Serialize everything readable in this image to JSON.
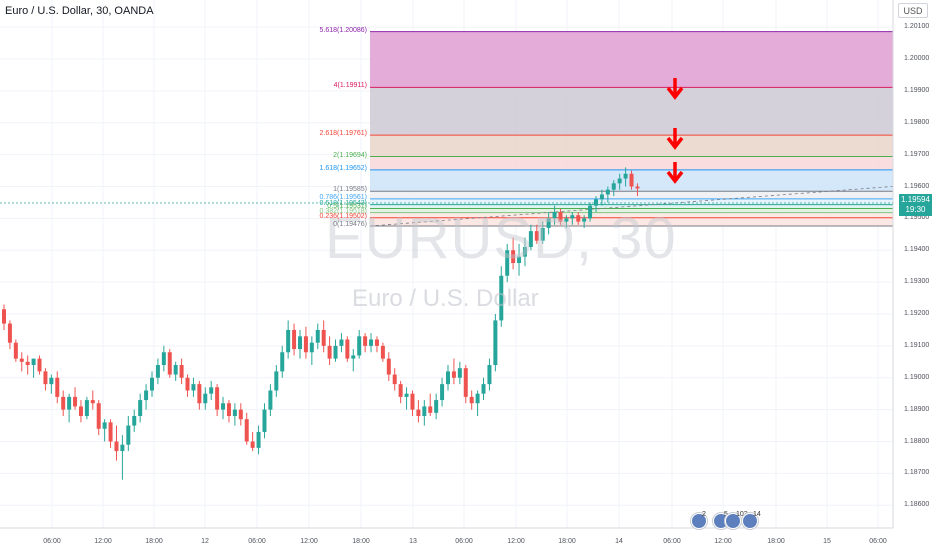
{
  "chart_title": "Euro / U.S. Dollar, 30, OANDA",
  "currency_button": "USD",
  "watermark": {
    "symbol": "EURUSD, 30",
    "name": "Euro / U.S. Dollar"
  },
  "last_price": {
    "price": "1.19594",
    "countdown": "19:30"
  },
  "colors": {
    "up": "#26a69a",
    "down": "#ef5350",
    "arrow": "#ff0000",
    "grid": "#f0f3fa"
  },
  "fib_levels": [
    {
      "ratio": 5.618,
      "label": "5.618(1.20086)",
      "color": "#8e24aa",
      "fill": "#e1a3d4"
    },
    {
      "ratio": 4,
      "label": "4(1.19911)",
      "color": "#d81b60",
      "fill": "#d0ccd6"
    },
    {
      "ratio": 2.618,
      "label": "2.618(1.19761)",
      "color": "#f44336",
      "fill": "#ead7cc"
    },
    {
      "ratio": 2,
      "label": "2(1.19694)",
      "color": "#4caf50",
      "fill": "#f9d9dc"
    },
    {
      "ratio": 1.618,
      "label": "1.618(1.19652)",
      "color": "#2196f3",
      "fill": "#cfe5fa"
    },
    {
      "ratio": 1,
      "label": "1(1.19585)",
      "color": "#787b86",
      "fill": "#eef0f3"
    },
    {
      "ratio": 0.786,
      "label": "0.786(1.19561)",
      "color": "#42a5f5",
      "fill": "#e3f2fb"
    },
    {
      "ratio": 0.618,
      "label": "0.618(1.19543)",
      "color": "#26a69a",
      "fill": "#dcf2ee"
    },
    {
      "ratio": 0.5,
      "label": "0.5(1.19531)",
      "color": "#4caf50",
      "fill": "#e0f1df"
    },
    {
      "ratio": 0.382,
      "label": "0.382(1.19518)",
      "color": "#81c784",
      "fill": "#fbe9e3"
    },
    {
      "ratio": 0.236,
      "label": "0.236(1.19502)",
      "color": "#f44336",
      "fill": "#fbe4e0"
    },
    {
      "ratio": 0,
      "label": "0(1.19476)",
      "color": "#787b86"
    }
  ],
  "y_axis": [
    "1.20100",
    "1.20000",
    "1.19900",
    "1.19800",
    "1.19700",
    "1.19600",
    "1.19500",
    "1.19400",
    "1.19300",
    "1.19200",
    "1.19100",
    "1.19000",
    "1.18900",
    "1.18800",
    "1.18700",
    "1.18600"
  ],
  "x_axis": [
    "06:00",
    "12:00",
    "18:00",
    "12",
    "06:00",
    "12:00",
    "18:00",
    "13",
    "06:00",
    "12:00",
    "18:00",
    "14",
    "06:00",
    "12:00",
    "18:00",
    "15",
    "06:00"
  ],
  "events": [
    {
      "count": "2"
    },
    {
      "count": "5"
    },
    {
      "count": "103"
    },
    {
      "count": "14"
    }
  ],
  "chart_data": {
    "type": "candlestick",
    "title": "Euro / U.S. Dollar, 30, OANDA",
    "ylim": [
      1.1856,
      1.2016
    ],
    "candles_ohlc": [
      [
        1.19215,
        1.1923,
        1.1915,
        1.1917
      ],
      [
        1.1917,
        1.1918,
        1.1909,
        1.1911
      ],
      [
        1.1911,
        1.1912,
        1.1905,
        1.1906
      ],
      [
        1.1906,
        1.1908,
        1.1902,
        1.1905
      ],
      [
        1.1905,
        1.1907,
        1.1901,
        1.1904
      ],
      [
        1.1904,
        1.1906,
        1.19,
        1.1906
      ],
      [
        1.1906,
        1.1907,
        1.1901,
        1.1902
      ],
      [
        1.1902,
        1.1903,
        1.1896,
        1.1898
      ],
      [
        1.1898,
        1.1901,
        1.1895,
        1.19
      ],
      [
        1.19,
        1.1902,
        1.1892,
        1.1894
      ],
      [
        1.1894,
        1.1896,
        1.1888,
        1.189
      ],
      [
        1.189,
        1.1895,
        1.1886,
        1.1894
      ],
      [
        1.1894,
        1.1897,
        1.189,
        1.1891
      ],
      [
        1.1891,
        1.1893,
        1.1886,
        1.1888
      ],
      [
        1.1888,
        1.1894,
        1.1887,
        1.1893
      ],
      [
        1.1893,
        1.1896,
        1.189,
        1.1892
      ],
      [
        1.1892,
        1.1893,
        1.1882,
        1.1884
      ],
      [
        1.1884,
        1.1887,
        1.188,
        1.1886
      ],
      [
        1.1886,
        1.1887,
        1.1878,
        1.188
      ],
      [
        1.188,
        1.1885,
        1.1874,
        1.1877
      ],
      [
        1.1877,
        1.1882,
        1.1868,
        1.1879
      ],
      [
        1.1879,
        1.1888,
        1.1877,
        1.1885
      ],
      [
        1.1885,
        1.189,
        1.1883,
        1.1888
      ],
      [
        1.1888,
        1.1895,
        1.1886,
        1.1893
      ],
      [
        1.1893,
        1.1898,
        1.189,
        1.1896
      ],
      [
        1.1896,
        1.1902,
        1.1894,
        1.19
      ],
      [
        1.19,
        1.1906,
        1.1898,
        1.1904
      ],
      [
        1.1904,
        1.191,
        1.1902,
        1.1908
      ],
      [
        1.1908,
        1.1909,
        1.19,
        1.1901
      ],
      [
        1.1901,
        1.1905,
        1.1899,
        1.1904
      ],
      [
        1.1904,
        1.1906,
        1.1898,
        1.19
      ],
      [
        1.19,
        1.1901,
        1.1894,
        1.1896
      ],
      [
        1.1896,
        1.19,
        1.1894,
        1.1898
      ],
      [
        1.1898,
        1.1899,
        1.189,
        1.1892
      ],
      [
        1.1892,
        1.1897,
        1.189,
        1.1895
      ],
      [
        1.1895,
        1.1899,
        1.1893,
        1.1897
      ],
      [
        1.1897,
        1.1898,
        1.1888,
        1.189
      ],
      [
        1.189,
        1.1894,
        1.1887,
        1.1892
      ],
      [
        1.1892,
        1.1893,
        1.1886,
        1.1888
      ],
      [
        1.1888,
        1.1892,
        1.1885,
        1.189
      ],
      [
        1.189,
        1.1892,
        1.1885,
        1.1887
      ],
      [
        1.1887,
        1.1889,
        1.1879,
        1.188
      ],
      [
        1.188,
        1.1883,
        1.1877,
        1.1878
      ],
      [
        1.1878,
        1.1885,
        1.1876,
        1.1883
      ],
      [
        1.1883,
        1.1892,
        1.1881,
        1.189
      ],
      [
        1.189,
        1.1898,
        1.1888,
        1.1896
      ],
      [
        1.1896,
        1.1904,
        1.1894,
        1.1902
      ],
      [
        1.1902,
        1.191,
        1.19,
        1.1908
      ],
      [
        1.1908,
        1.1918,
        1.1906,
        1.1915
      ],
      [
        1.1915,
        1.1917,
        1.1907,
        1.1909
      ],
      [
        1.1909,
        1.1915,
        1.1906,
        1.1913
      ],
      [
        1.1913,
        1.1916,
        1.1906,
        1.1908
      ],
      [
        1.1908,
        1.1913,
        1.1904,
        1.1911
      ],
      [
        1.1911,
        1.1917,
        1.1909,
        1.1915
      ],
      [
        1.1915,
        1.1918,
        1.1908,
        1.191
      ],
      [
        1.191,
        1.1913,
        1.1904,
        1.1906
      ],
      [
        1.1906,
        1.1912,
        1.1905,
        1.191
      ],
      [
        1.191,
        1.1914,
        1.1908,
        1.1912
      ],
      [
        1.1912,
        1.1913,
        1.1905,
        1.1906
      ],
      [
        1.1906,
        1.1909,
        1.1902,
        1.1907
      ],
      [
        1.1907,
        1.1915,
        1.1906,
        1.1913
      ],
      [
        1.1913,
        1.1914,
        1.1908,
        1.191
      ],
      [
        1.191,
        1.1914,
        1.1908,
        1.1912
      ],
      [
        1.1912,
        1.1913,
        1.1908,
        1.191
      ],
      [
        1.191,
        1.1911,
        1.1905,
        1.1906
      ],
      [
        1.1906,
        1.1908,
        1.1899,
        1.1901
      ],
      [
        1.1901,
        1.1903,
        1.1896,
        1.1898
      ],
      [
        1.1898,
        1.1899,
        1.1892,
        1.1894
      ],
      [
        1.1894,
        1.1897,
        1.189,
        1.1895
      ],
      [
        1.1895,
        1.1896,
        1.1888,
        1.189
      ],
      [
        1.189,
        1.1893,
        1.1886,
        1.1888
      ],
      [
        1.1888,
        1.1893,
        1.1885,
        1.1891
      ],
      [
        1.1891,
        1.1895,
        1.1888,
        1.1889
      ],
      [
        1.1889,
        1.1895,
        1.1887,
        1.1893
      ],
      [
        1.1893,
        1.19,
        1.1891,
        1.1898
      ],
      [
        1.1898,
        1.1904,
        1.1896,
        1.1902
      ],
      [
        1.1902,
        1.1906,
        1.1898,
        1.19
      ],
      [
        1.19,
        1.1905,
        1.1898,
        1.1903
      ],
      [
        1.1903,
        1.1904,
        1.1892,
        1.1894
      ],
      [
        1.1894,
        1.1896,
        1.189,
        1.1892
      ],
      [
        1.1892,
        1.1896,
        1.1888,
        1.1895
      ],
      [
        1.1895,
        1.19,
        1.1893,
        1.1898
      ],
      [
        1.1898,
        1.1906,
        1.1896,
        1.1904
      ],
      [
        1.1904,
        1.192,
        1.1902,
        1.1918
      ],
      [
        1.1918,
        1.1935,
        1.1916,
        1.1932
      ],
      [
        1.1932,
        1.1942,
        1.193,
        1.194
      ],
      [
        1.194,
        1.1944,
        1.1934,
        1.1936
      ],
      [
        1.1936,
        1.1942,
        1.1932,
        1.1938
      ],
      [
        1.1938,
        1.1944,
        1.1935,
        1.1941
      ],
      [
        1.1941,
        1.1948,
        1.194,
        1.1946
      ],
      [
        1.1946,
        1.1948,
        1.1942,
        1.1943
      ],
      [
        1.1943,
        1.1949,
        1.1942,
        1.1947
      ],
      [
        1.1947,
        1.1952,
        1.1945,
        1.195
      ],
      [
        1.195,
        1.1954,
        1.1948,
        1.1952
      ],
      [
        1.1952,
        1.1953,
        1.1948,
        1.1949
      ],
      [
        1.1949,
        1.1951,
        1.1947,
        1.195
      ],
      [
        1.195,
        1.1952,
        1.1948,
        1.1951
      ],
      [
        1.1951,
        1.1952,
        1.1948,
        1.1949
      ],
      [
        1.1949,
        1.1951,
        1.1947,
        1.195
      ],
      [
        1.195,
        1.1955,
        1.1949,
        1.1954
      ],
      [
        1.1954,
        1.1957,
        1.1952,
        1.1956
      ],
      [
        1.1956,
        1.1959,
        1.1954,
        1.19575
      ],
      [
        1.19575,
        1.196,
        1.1955,
        1.1959
      ],
      [
        1.1959,
        1.1962,
        1.1957,
        1.1961
      ],
      [
        1.1961,
        1.1964,
        1.1959,
        1.19625
      ],
      [
        1.19625,
        1.1966,
        1.196,
        1.1964
      ],
      [
        1.1964,
        1.1965,
        1.1959,
        1.196
      ],
      [
        1.196,
        1.1961,
        1.1957,
        1.19594
      ]
    ]
  }
}
